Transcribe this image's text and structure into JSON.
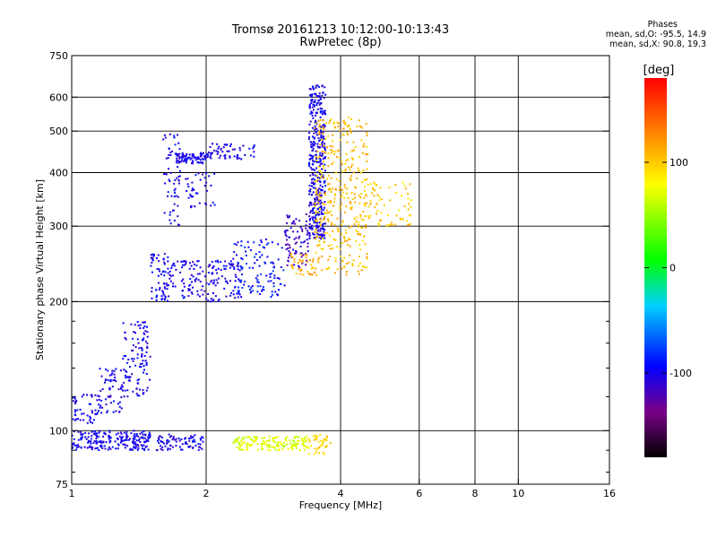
{
  "chart_data": {
    "type": "scatter",
    "title": "Tromsø 20161213 10:12:00-10:13:43",
    "subtitle": "RwPretec (8p)",
    "stats": {
      "heading": "Phases",
      "o_mode": "mean, sd,O: -95.5, 14.9",
      "x_mode": "mean, sd,X:  90.8, 19.3"
    },
    "xlabel": "Frequency [MHz]",
    "ylabel": "Stationary phase Virtual Height [km]",
    "xscale": "log",
    "yscale": "log",
    "xlim": [
      1,
      16
    ],
    "ylim": [
      75,
      750
    ],
    "grid": true,
    "x_ticks": [
      1,
      2,
      4,
      6,
      8,
      10,
      16
    ],
    "x_grid": [
      2,
      4,
      6,
      8,
      10
    ],
    "y_ticks": [
      75,
      100,
      200,
      300,
      400,
      500,
      600,
      750
    ],
    "y_grid": [
      100,
      200,
      300,
      400,
      500,
      600
    ],
    "y_minor": [
      80,
      90,
      120,
      140,
      160,
      180
    ],
    "colorbar": {
      "label": "[deg]",
      "min": -180,
      "max": 180,
      "ticks": [
        100,
        0,
        -100
      ],
      "colors": [
        "#000000",
        "#7a0088",
        "#0000ff",
        "#00d0ff",
        "#00ff00",
        "#ffff00",
        "#ff8000",
        "#ff0000"
      ]
    },
    "series": [
      {
        "x_range": [
          1.0,
          1.5
        ],
        "y_range": [
          90,
          100
        ],
        "phase": -100,
        "count": 220
      },
      {
        "x_range": [
          1.55,
          2.0
        ],
        "y_range": [
          90,
          98
        ],
        "phase": -100,
        "count": 80
      },
      {
        "x_range": [
          2.3,
          3.4
        ],
        "y_range": [
          90,
          97
        ],
        "phase": 70,
        "count": 160
      },
      {
        "x_range": [
          3.4,
          3.8
        ],
        "y_range": [
          88,
          98
        ],
        "phase": 95,
        "count": 40
      },
      {
        "x_range": [
          1.0,
          1.15
        ],
        "y_range": [
          104,
          122
        ],
        "phase": -100,
        "count": 50
      },
      {
        "x_range": [
          1.15,
          1.3
        ],
        "y_range": [
          110,
          140
        ],
        "phase": -100,
        "count": 60
      },
      {
        "x_range": [
          1.3,
          1.5
        ],
        "y_range": [
          120,
          180
        ],
        "phase": -100,
        "count": 110
      },
      {
        "x_range": [
          1.5,
          1.65
        ],
        "y_range": [
          200,
          260
        ],
        "phase": -100,
        "count": 60
      },
      {
        "x_range": [
          1.6,
          2.4
        ],
        "y_range": [
          200,
          250
        ],
        "phase": -100,
        "count": 170
      },
      {
        "x_range": [
          2.3,
          3.0
        ],
        "y_range": [
          205,
          280
        ],
        "phase": -90,
        "count": 110
      },
      {
        "x_range": [
          3.0,
          3.4
        ],
        "y_range": [
          240,
          320
        ],
        "phase": -115,
        "count": 80
      },
      {
        "x_range": [
          3.4,
          3.7
        ],
        "y_range": [
          280,
          640
        ],
        "phase": -100,
        "count": 400
      },
      {
        "x_range": [
          3.1,
          3.5
        ],
        "y_range": [
          230,
          260
        ],
        "phase": 110,
        "count": 40
      },
      {
        "x_range": [
          3.5,
          4.6
        ],
        "y_range": [
          230,
          540
        ],
        "phase": 105,
        "count": 380
      },
      {
        "x_range": [
          4.6,
          5.8
        ],
        "y_range": [
          300,
          380
        ],
        "phase": 100,
        "count": 70
      },
      {
        "x_range": [
          1.6,
          1.75
        ],
        "y_range": [
          300,
          500
        ],
        "phase": -100,
        "count": 60
      },
      {
        "x_range": [
          1.7,
          2.0
        ],
        "y_range": [
          420,
          445
        ],
        "phase": -100,
        "count": 80
      },
      {
        "x_range": [
          2.0,
          2.6
        ],
        "y_range": [
          430,
          470
        ],
        "phase": -100,
        "count": 60
      },
      {
        "x_range": [
          1.8,
          2.1
        ],
        "y_range": [
          330,
          400
        ],
        "phase": -100,
        "count": 40
      }
    ]
  }
}
